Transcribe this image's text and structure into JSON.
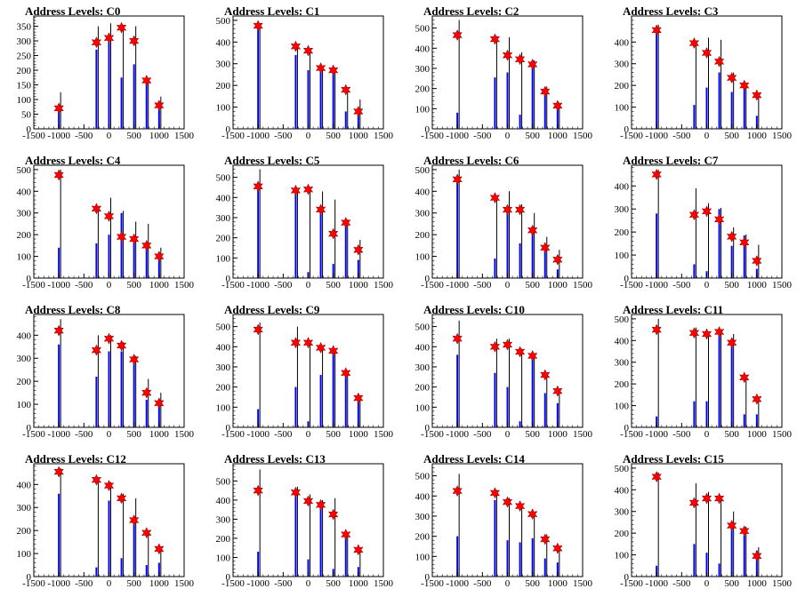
{
  "chart_data": [
    {
      "title": "Address Levels: C0",
      "type": "bar",
      "xlim": [
        -1500,
        1500
      ],
      "ylim": [
        0,
        385
      ],
      "yticks": [
        0,
        50,
        100,
        150,
        200,
        250,
        300,
        350
      ],
      "xticks": [
        -1500,
        -1000,
        -500,
        0,
        500,
        1000,
        1500
      ],
      "black_values": [
        125,
        350,
        360,
        355,
        350,
        170,
        110
      ],
      "blue_values": [
        70,
        270,
        310,
        175,
        220,
        160,
        65
      ],
      "marker_values": [
        70,
        295,
        310,
        345,
        300,
        165,
        80
      ]
    },
    {
      "title": "Address Levels: C1",
      "type": "bar",
      "xlim": [
        -1500,
        1500
      ],
      "ylim": [
        0,
        520
      ],
      "yticks": [
        0,
        100,
        200,
        300,
        400,
        500
      ],
      "xticks": [
        -1500,
        -1000,
        -500,
        0,
        500,
        1000,
        1500
      ],
      "black_values": [
        480,
        385,
        365,
        280,
        275,
        180,
        135
      ],
      "blue_values": [
        470,
        340,
        270,
        265,
        280,
        80,
        80
      ],
      "marker_values": [
        475,
        380,
        360,
        280,
        270,
        180,
        80
      ]
    },
    {
      "title": "Address Levels: C2",
      "type": "bar",
      "xlim": [
        -1500,
        1500
      ],
      "ylim": [
        0,
        560
      ],
      "yticks": [
        0,
        100,
        200,
        300,
        400,
        500
      ],
      "xticks": [
        -1500,
        -1000,
        -500,
        0,
        500,
        1000,
        1500
      ],
      "black_values": [
        540,
        460,
        455,
        380,
        340,
        210,
        130
      ],
      "blue_values": [
        80,
        255,
        280,
        70,
        320,
        190,
        110
      ],
      "marker_values": [
        465,
        445,
        365,
        345,
        320,
        185,
        115
      ]
    },
    {
      "title": "Address Levels: C3",
      "type": "bar",
      "xlim": [
        -1500,
        1500
      ],
      "ylim": [
        0,
        520
      ],
      "yticks": [
        0,
        100,
        200,
        300,
        400
      ],
      "xticks": [
        -1500,
        -1000,
        -500,
        0,
        500,
        1000,
        1500
      ],
      "black_values": [
        480,
        400,
        420,
        410,
        260,
        210,
        160
      ],
      "blue_values": [
        460,
        110,
        190,
        260,
        170,
        210,
        60
      ],
      "marker_values": [
        455,
        395,
        350,
        310,
        235,
        200,
        155
      ]
    },
    {
      "title": "Address Levels: C4",
      "type": "bar",
      "xlim": [
        -1500,
        1500
      ],
      "ylim": [
        0,
        520
      ],
      "yticks": [
        0,
        100,
        200,
        300,
        400,
        500
      ],
      "xticks": [
        -1500,
        -1000,
        -500,
        0,
        500,
        1000,
        1500
      ],
      "black_values": [
        500,
        320,
        370,
        310,
        260,
        250,
        140
      ],
      "blue_values": [
        140,
        160,
        200,
        300,
        170,
        160,
        90
      ],
      "marker_values": [
        475,
        320,
        285,
        190,
        180,
        150,
        100
      ]
    },
    {
      "title": "Address Levels: C5",
      "type": "bar",
      "xlim": [
        -1500,
        1500
      ],
      "ylim": [
        0,
        560
      ],
      "yticks": [
        0,
        100,
        200,
        300,
        400,
        500
      ],
      "xticks": [
        -1500,
        -1000,
        -500,
        0,
        500,
        1000,
        1500
      ],
      "black_values": [
        540,
        440,
        450,
        430,
        390,
        290,
        190
      ],
      "blue_values": [
        460,
        450,
        30,
        340,
        70,
        270,
        90
      ],
      "marker_values": [
        455,
        435,
        440,
        340,
        220,
        275,
        140
      ]
    },
    {
      "title": "Address Levels: C6",
      "type": "bar",
      "xlim": [
        -1500,
        1500
      ],
      "ylim": [
        0,
        520
      ],
      "yticks": [
        0,
        100,
        200,
        300,
        400,
        500
      ],
      "xticks": [
        -1500,
        -1000,
        -500,
        0,
        500,
        1000,
        1500
      ],
      "black_values": [
        500,
        380,
        400,
        340,
        300,
        190,
        130
      ],
      "blue_values": [
        450,
        90,
        320,
        160,
        210,
        140,
        40
      ],
      "marker_values": [
        455,
        370,
        315,
        315,
        220,
        140,
        85
      ]
    },
    {
      "title": "Address Levels: C7",
      "type": "bar",
      "xlim": [
        -1500,
        1500
      ],
      "ylim": [
        0,
        490
      ],
      "yticks": [
        0,
        100,
        200,
        300,
        400
      ],
      "xticks": [
        -1500,
        -1000,
        -500,
        0,
        500,
        1000,
        1500
      ],
      "black_values": [
        470,
        390,
        325,
        305,
        220,
        190,
        145
      ],
      "blue_values": [
        280,
        60,
        30,
        300,
        140,
        185,
        40
      ],
      "marker_values": [
        450,
        275,
        290,
        255,
        180,
        155,
        75
      ]
    },
    {
      "title": "Address Levels: C8",
      "type": "bar",
      "xlim": [
        -1500,
        1500
      ],
      "ylim": [
        0,
        490
      ],
      "yticks": [
        0,
        100,
        200,
        300,
        400
      ],
      "xticks": [
        -1500,
        -1000,
        -500,
        0,
        500,
        1000,
        1500
      ],
      "black_values": [
        470,
        400,
        400,
        370,
        310,
        210,
        150
      ],
      "blue_values": [
        360,
        220,
        330,
        330,
        280,
        120,
        95
      ],
      "marker_values": [
        420,
        335,
        385,
        355,
        295,
        150,
        105
      ]
    },
    {
      "title": "Address Levels: C9",
      "type": "bar",
      "xlim": [
        -1500,
        1500
      ],
      "ylim": [
        0,
        560
      ],
      "yticks": [
        0,
        100,
        200,
        300,
        400,
        500
      ],
      "xticks": [
        -1500,
        -1000,
        -500,
        0,
        500,
        1000,
        1500
      ],
      "black_values": [
        520,
        500,
        420,
        400,
        390,
        280,
        160
      ],
      "blue_values": [
        90,
        200,
        30,
        260,
        370,
        270,
        140
      ],
      "marker_values": [
        485,
        420,
        420,
        395,
        380,
        270,
        145
      ]
    },
    {
      "title": "Address Levels: C10",
      "type": "bar",
      "xlim": [
        -1500,
        1500
      ],
      "ylim": [
        0,
        560
      ],
      "yticks": [
        0,
        100,
        200,
        300,
        400,
        500
      ],
      "xticks": [
        -1500,
        -1000,
        -500,
        0,
        500,
        1000,
        1500
      ],
      "black_values": [
        530,
        440,
        440,
        390,
        360,
        270,
        190
      ],
      "blue_values": [
        360,
        270,
        200,
        30,
        350,
        170,
        120
      ],
      "marker_values": [
        440,
        400,
        410,
        375,
        355,
        260,
        180
      ]
    },
    {
      "title": "Address Levels: C11",
      "type": "bar",
      "xlim": [
        -1500,
        1500
      ],
      "ylim": [
        0,
        520
      ],
      "yticks": [
        0,
        100,
        200,
        300,
        400,
        500
      ],
      "xticks": [
        -1500,
        -1000,
        -500,
        0,
        500,
        1000,
        1500
      ],
      "black_values": [
        500,
        460,
        440,
        440,
        430,
        240,
        140
      ],
      "blue_values": [
        50,
        120,
        120,
        430,
        380,
        60,
        60
      ],
      "marker_values": [
        450,
        435,
        430,
        440,
        390,
        230,
        130
      ]
    },
    {
      "title": "Address Levels: C12",
      "type": "bar",
      "xlim": [
        -1500,
        1500
      ],
      "ylim": [
        0,
        490
      ],
      "yticks": [
        0,
        100,
        200,
        300,
        400
      ],
      "xticks": [
        -1500,
        -1000,
        -500,
        0,
        500,
        1000,
        1500
      ],
      "black_values": [
        470,
        430,
        410,
        360,
        340,
        200,
        130
      ],
      "blue_values": [
        360,
        40,
        330,
        80,
        240,
        50,
        60
      ],
      "marker_values": [
        455,
        420,
        395,
        340,
        245,
        190,
        120
      ]
    },
    {
      "title": "Address Levels: C13",
      "type": "bar",
      "xlim": [
        -1500,
        1500
      ],
      "ylim": [
        0,
        590
      ],
      "yticks": [
        0,
        100,
        200,
        300,
        400,
        500
      ],
      "xticks": [
        -1500,
        -1000,
        -500,
        0,
        500,
        1000,
        1500
      ],
      "black_values": [
        560,
        470,
        430,
        400,
        410,
        230,
        150
      ],
      "blue_values": [
        130,
        440,
        90,
        380,
        40,
        200,
        50
      ],
      "marker_values": [
        450,
        440,
        395,
        375,
        325,
        220,
        140
      ]
    },
    {
      "title": "Address Levels: C14",
      "type": "bar",
      "xlim": [
        -1500,
        1500
      ],
      "ylim": [
        0,
        560
      ],
      "yticks": [
        0,
        100,
        200,
        300,
        400,
        500
      ],
      "xticks": [
        -1500,
        -1000,
        -500,
        0,
        500,
        1000,
        1500
      ],
      "black_values": [
        510,
        430,
        390,
        360,
        320,
        210,
        150
      ],
      "blue_values": [
        200,
        380,
        180,
        170,
        190,
        90,
        70
      ],
      "marker_values": [
        425,
        415,
        370,
        350,
        310,
        185,
        140
      ]
    },
    {
      "title": "Address Levels: C15",
      "type": "bar",
      "xlim": [
        -1500,
        1500
      ],
      "ylim": [
        0,
        520
      ],
      "yticks": [
        0,
        100,
        200,
        300,
        400,
        500
      ],
      "xticks": [
        -1500,
        -1000,
        -500,
        0,
        500,
        1000,
        1500
      ],
      "black_values": [
        480,
        430,
        390,
        370,
        300,
        230,
        135
      ],
      "blue_values": [
        50,
        150,
        110,
        60,
        250,
        190,
        120
      ],
      "marker_values": [
        460,
        340,
        360,
        360,
        235,
        210,
        95
      ]
    }
  ],
  "peak_positions": [
    -1000,
    -250,
    0,
    250,
    500,
    750,
    1000
  ],
  "colors": {
    "spike_black": "#000000",
    "spike_blue": "#0000ff",
    "marker": "#ff0000"
  }
}
